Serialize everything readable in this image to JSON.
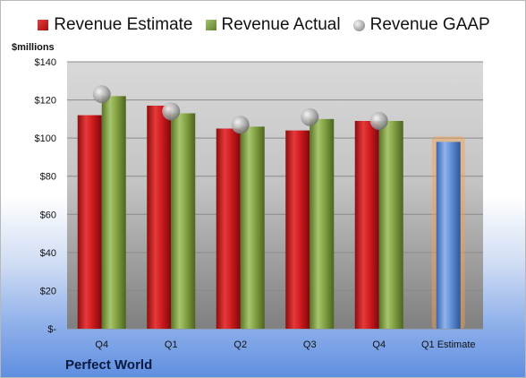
{
  "chart_data": {
    "type": "bar",
    "categories": [
      "Q4",
      "Q1",
      "Q2",
      "Q3",
      "Q4",
      "Q1 Estimate"
    ],
    "series": [
      {
        "name": "Revenue Estimate",
        "values": [
          112,
          117,
          105,
          104,
          109,
          null
        ],
        "color": "#c0171b"
      },
      {
        "name": "Revenue Actual",
        "values": [
          122,
          113,
          106,
          110,
          109,
          null
        ],
        "color": "#7d9b3f"
      },
      {
        "name": "Revenue GAAP",
        "values": [
          123,
          114,
          107,
          111,
          109,
          null
        ],
        "color": "#a0a0a0",
        "marker": "sphere"
      },
      {
        "name": "",
        "values": [
          null,
          null,
          null,
          null,
          null,
          98
        ],
        "color": "#4f7fc9",
        "highlight": "#f5a04a"
      }
    ],
    "ylabel": "$millions",
    "ylim": [
      0,
      140
    ],
    "yticks": [
      0,
      20,
      40,
      60,
      80,
      100,
      120,
      140
    ],
    "ytick_labels": [
      "$-",
      "$20",
      "$40",
      "$60",
      "$80",
      "$100",
      "$120",
      "$140"
    ],
    "grid": true,
    "legend_position": "top"
  },
  "legend": {
    "estimate": "Revenue Estimate",
    "actual": "Revenue Actual",
    "gaap": "Revenue GAAP"
  },
  "unit_label": "$millions",
  "company": "Perfect World"
}
